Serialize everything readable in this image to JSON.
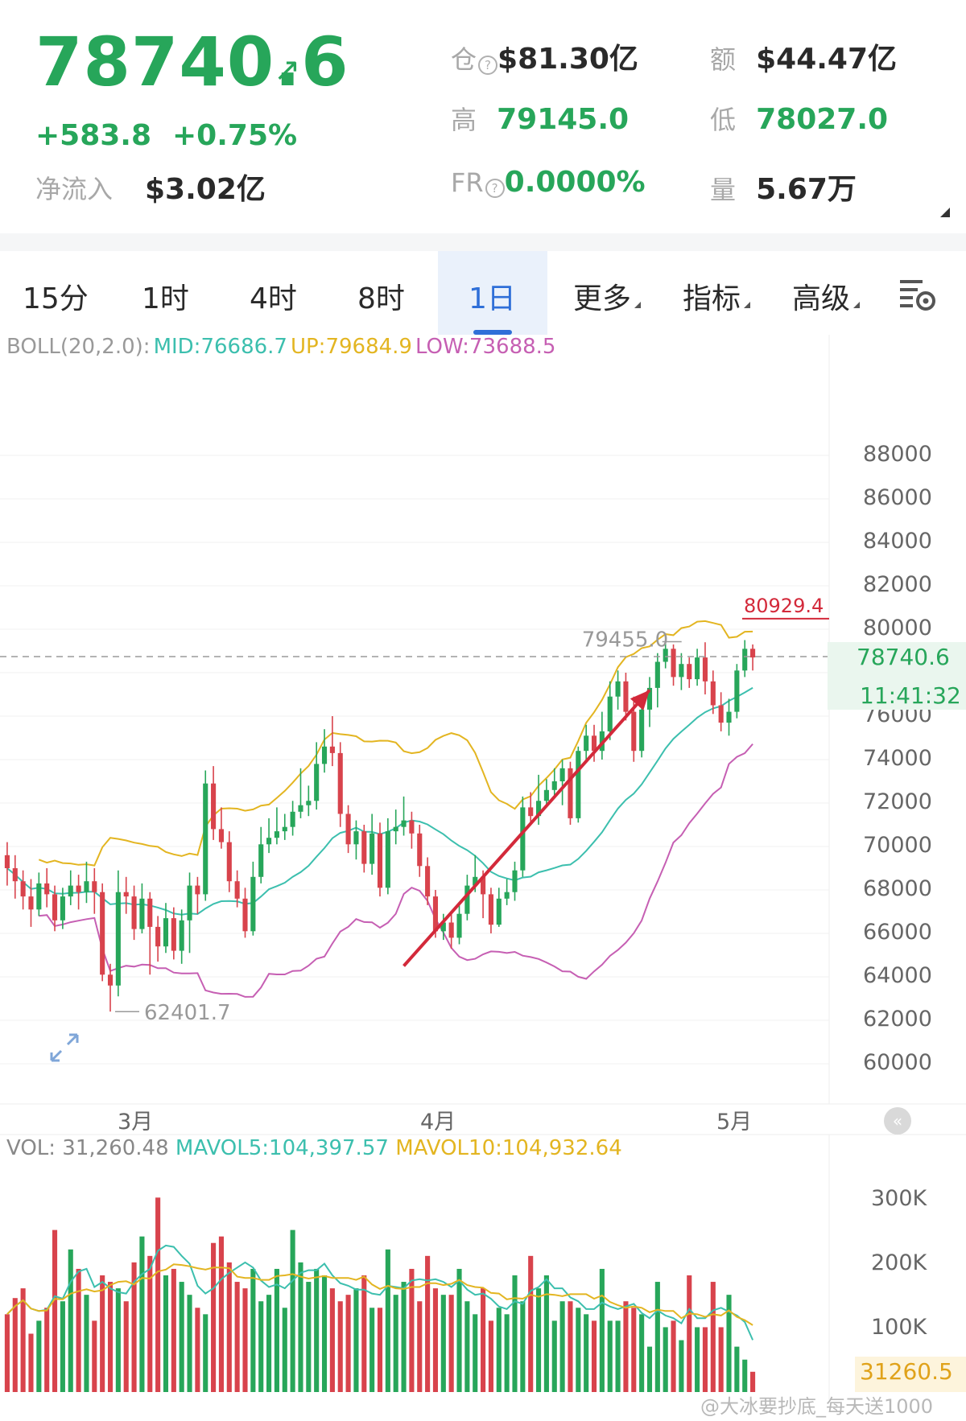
{
  "header": {
    "price": "78740.6",
    "change": "+583.8",
    "change_pct": "+0.75%",
    "netflow_label": "净流入",
    "netflow_value": "$3.02亿",
    "stats": {
      "oi_label": "仓",
      "oi_value": "$81.30亿",
      "turnover_label": "额",
      "turnover_value": "$44.47亿",
      "high_label": "高",
      "high_value": "79145.0",
      "low_label": "低",
      "low_value": "78027.0",
      "fr_label": "FR",
      "fr_value": "0.0000%",
      "vol_label": "量",
      "vol_value": "5.67万"
    },
    "colors": {
      "up": "#27a65a",
      "down": "#d8434c"
    }
  },
  "tabs": {
    "items": [
      "15分",
      "1时",
      "4时",
      "8时",
      "1日"
    ],
    "more": "更多",
    "indicators": "指标",
    "advanced": "高级",
    "active": "1日",
    "settings_icon": "chart-settings-icon"
  },
  "boll": {
    "name": "BOLL(20,2.0):",
    "mid": "MID:76686.7",
    "up": "UP:79684.9",
    "low": "LOW:73688.5",
    "colors": {
      "mid": "#3cbfae",
      "up": "#e3b521",
      "low": "#c65fb3"
    }
  },
  "price_axis": {
    "ticks": [
      "88000",
      "86000",
      "84000",
      "82000",
      "80000",
      "78000",
      "76000",
      "74000",
      "72000",
      "70000",
      "68000",
      "66000",
      "64000",
      "62000",
      "60000"
    ],
    "current_price": "78740.6",
    "countdown": "11:41:32",
    "max_marker": "80929.4",
    "high_marker": "79455.0",
    "low_marker": "62401.7"
  },
  "time_axis": {
    "labels": [
      "3月",
      "4月",
      "5月"
    ]
  },
  "volume": {
    "label": "VOL: 31,260.48",
    "mavol5": "MAVOL5:104,397.57",
    "mavol10": "MAVOL10:104,932.64",
    "ticks": [
      "300K",
      "200K",
      "100K"
    ],
    "current": "31260.5"
  },
  "watermark": "@大冰要抄底_每天送1000",
  "chart_data": {
    "type": "candlestick",
    "price_ylim": [
      60000,
      88000
    ],
    "volume_ylim": [
      0,
      360000
    ],
    "price_extremes": {
      "high_marker": 79455.0,
      "low_marker": 62401.7,
      "max_marker": 80929.4,
      "current": 78740.6
    },
    "indicator": "BOLL(20,2.0)",
    "trendline": {
      "from": [
        50,
        64500
      ],
      "to": [
        81,
        77200
      ]
    },
    "candles": [
      [
        69600,
        69000,
        70200,
        68200
      ],
      [
        69000,
        68400,
        69600,
        67600
      ],
      [
        68400,
        67700,
        68900,
        67100
      ],
      [
        67700,
        67100,
        68500,
        66300
      ],
      [
        67100,
        68300,
        68800,
        66800
      ],
      [
        68300,
        67800,
        69000,
        67200
      ],
      [
        67800,
        66600,
        68200,
        66100
      ],
      [
        66600,
        67700,
        68100,
        66200
      ],
      [
        67700,
        68200,
        68900,
        67300
      ],
      [
        68200,
        67900,
        68700,
        67100
      ],
      [
        67900,
        68400,
        69300,
        67400
      ],
      [
        68400,
        67900,
        69000,
        66900
      ],
      [
        67900,
        64100,
        68300,
        63800
      ],
      [
        64100,
        63600,
        64600,
        62400
      ],
      [
        63600,
        67900,
        68900,
        63100
      ],
      [
        67900,
        67700,
        68600,
        66900
      ],
      [
        67700,
        66200,
        68200,
        65700
      ],
      [
        66200,
        67600,
        68300,
        66000
      ],
      [
        67600,
        66300,
        67900,
        64100
      ],
      [
        66300,
        65400,
        66800,
        64700
      ],
      [
        65400,
        66700,
        67400,
        65100
      ],
      [
        66700,
        65200,
        67200,
        64800
      ],
      [
        65200,
        66600,
        67100,
        64600
      ],
      [
        66600,
        68200,
        68800,
        65100
      ],
      [
        68200,
        67800,
        68600,
        66900
      ],
      [
        67800,
        72900,
        73500,
        67500
      ],
      [
        72900,
        70800,
        73700,
        70300
      ],
      [
        70800,
        70200,
        71800,
        69900
      ],
      [
        70200,
        68400,
        70700,
        67900
      ],
      [
        68400,
        67600,
        68900,
        67200
      ],
      [
        67600,
        66100,
        68100,
        65800
      ],
      [
        66100,
        68600,
        69300,
        65900
      ],
      [
        68600,
        70100,
        70900,
        68300
      ],
      [
        70100,
        70400,
        71300,
        69700
      ],
      [
        70400,
        70700,
        71800,
        70100
      ],
      [
        70700,
        70900,
        71500,
        70300
      ],
      [
        70900,
        71600,
        72100,
        70500
      ],
      [
        71600,
        71900,
        73600,
        71300
      ],
      [
        71900,
        72100,
        72800,
        71400
      ],
      [
        72100,
        73800,
        74800,
        71700
      ],
      [
        73800,
        74600,
        75400,
        73400
      ],
      [
        74600,
        74300,
        76000,
        73700
      ],
      [
        74300,
        71500,
        74800,
        70900
      ],
      [
        71500,
        70100,
        71900,
        69700
      ],
      [
        70100,
        70700,
        71200,
        69400
      ],
      [
        70700,
        69200,
        71000,
        68800
      ],
      [
        69200,
        70600,
        71500,
        68700
      ],
      [
        70600,
        68100,
        71100,
        67700
      ],
      [
        68100,
        70700,
        71300,
        67800
      ],
      [
        70700,
        70900,
        71700,
        70100
      ],
      [
        70900,
        71200,
        72300,
        70500
      ],
      [
        71200,
        70600,
        71600,
        69900
      ],
      [
        70600,
        69100,
        71000,
        68600
      ],
      [
        69100,
        67700,
        69500,
        67300
      ],
      [
        67700,
        66100,
        68000,
        65800
      ],
      [
        66100,
        66500,
        66900,
        65700
      ],
      [
        66500,
        65800,
        66900,
        65300
      ],
      [
        65800,
        66900,
        67400,
        65500
      ],
      [
        66900,
        68200,
        68700,
        66600
      ],
      [
        68200,
        68600,
        69600,
        67900
      ],
      [
        68600,
        67800,
        68900,
        66700
      ],
      [
        67800,
        66400,
        68100,
        66000
      ],
      [
        66400,
        67600,
        68100,
        66300
      ],
      [
        67600,
        67900,
        68500,
        67300
      ],
      [
        67900,
        68900,
        69300,
        67500
      ],
      [
        68900,
        71800,
        72300,
        68600
      ],
      [
        71800,
        71400,
        72500,
        71000
      ],
      [
        71400,
        72100,
        73300,
        71000
      ],
      [
        72100,
        72600,
        73100,
        71800
      ],
      [
        72600,
        73000,
        73600,
        72300
      ],
      [
        73000,
        73600,
        74000,
        71900
      ],
      [
        73600,
        71300,
        73900,
        71000
      ],
      [
        71300,
        74400,
        74600,
        71100
      ],
      [
        74400,
        75100,
        75600,
        73900
      ],
      [
        75100,
        74400,
        75600,
        73900
      ],
      [
        74400,
        75300,
        76200,
        74000
      ],
      [
        75300,
        76900,
        77600,
        74900
      ],
      [
        76900,
        77600,
        78100,
        76300
      ],
      [
        77600,
        76200,
        78000,
        75800
      ],
      [
        76200,
        74400,
        76900,
        73900
      ],
      [
        74400,
        76300,
        76700,
        74100
      ],
      [
        76300,
        77300,
        77800,
        75500
      ],
      [
        77300,
        78500,
        78900,
        76400
      ],
      [
        78500,
        79100,
        79500,
        78200
      ],
      [
        79100,
        77800,
        79300,
        77400
      ],
      [
        77800,
        78400,
        78900,
        77200
      ],
      [
        78400,
        77700,
        78700,
        77300
      ],
      [
        77700,
        78700,
        79100,
        77400
      ],
      [
        78700,
        77600,
        79400,
        77000
      ],
      [
        77600,
        76500,
        78100,
        76100
      ],
      [
        76500,
        75700,
        77100,
        75300
      ],
      [
        75700,
        76200,
        76800,
        75100
      ],
      [
        76200,
        78100,
        78400,
        75900
      ],
      [
        78100,
        79100,
        79500,
        77800
      ],
      [
        79100,
        78700,
        79300,
        78100
      ]
    ],
    "volume_values": [
      120000,
      145000,
      160000,
      90000,
      110000,
      130000,
      250000,
      140000,
      220000,
      190000,
      150000,
      110000,
      180000,
      170000,
      160000,
      140000,
      200000,
      240000,
      210000,
      300000,
      180000,
      190000,
      170000,
      150000,
      130000,
      120000,
      230000,
      240000,
      200000,
      170000,
      160000,
      190000,
      140000,
      150000,
      190000,
      130000,
      250000,
      200000,
      170000,
      190000,
      180000,
      160000,
      140000,
      150000,
      160000,
      180000,
      130000,
      130000,
      220000,
      150000,
      170000,
      190000,
      140000,
      210000,
      160000,
      150000,
      150000,
      190000,
      140000,
      120000,
      160000,
      110000,
      130000,
      120000,
      180000,
      140000,
      210000,
      160000,
      180000,
      110000,
      140000,
      140000,
      130000,
      120000,
      110000,
      190000,
      110000,
      110000,
      140000,
      130000,
      120000,
      70000,
      170000,
      100000,
      110000,
      80000,
      180000,
      100000,
      100000,
      170000,
      100000,
      150000,
      70000,
      50000,
      31260
    ]
  }
}
